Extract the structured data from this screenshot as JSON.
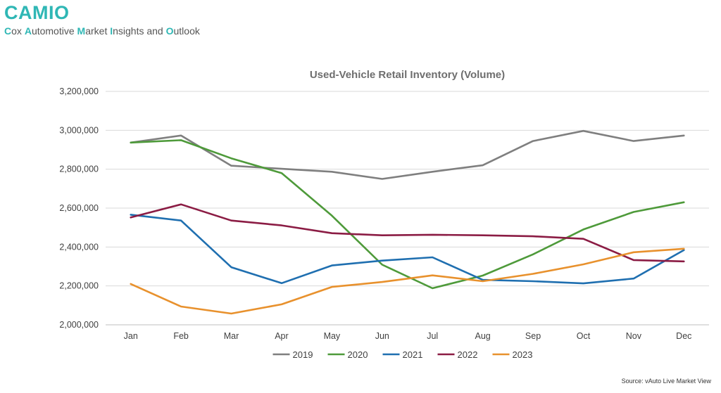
{
  "brand": {
    "title": "CAMIO",
    "subtitle_parts": [
      {
        "text": "C",
        "highlight": true
      },
      {
        "text": "ox ",
        "highlight": false
      },
      {
        "text": "A",
        "highlight": true
      },
      {
        "text": "utomotive ",
        "highlight": false
      },
      {
        "text": "M",
        "highlight": true
      },
      {
        "text": "arket ",
        "highlight": false
      },
      {
        "text": "I",
        "highlight": true
      },
      {
        "text": "nsights and ",
        "highlight": false
      },
      {
        "text": "O",
        "highlight": true
      },
      {
        "text": "utlook",
        "highlight": false
      }
    ],
    "accent_color": "#2fb7b5"
  },
  "source": "Source: vAuto Live Market View",
  "chart_data": {
    "type": "line",
    "title": "Used-Vehicle Retail Inventory (Volume)",
    "xlabel": "",
    "ylabel": "",
    "categories": [
      "Jan",
      "Feb",
      "Mar",
      "Apr",
      "May",
      "Jun",
      "Jul",
      "Aug",
      "Sep",
      "Oct",
      "Nov",
      "Dec"
    ],
    "ylim": [
      2000000,
      3200000
    ],
    "yticks": [
      2000000,
      2200000,
      2400000,
      2600000,
      2800000,
      3000000,
      3200000
    ],
    "ytick_labels": [
      "2,000,000",
      "2,200,000",
      "2,400,000",
      "2,600,000",
      "2,800,000",
      "3,000,000",
      "3,200,000"
    ],
    "grid": "horizontal",
    "legend_position": "bottom",
    "series": [
      {
        "name": "2019",
        "color": "#7f7f7f",
        "values": [
          2937000,
          2973000,
          2818000,
          2802000,
          2787000,
          2750000,
          2787000,
          2820000,
          2945000,
          2997000,
          2945000,
          2973000
        ]
      },
      {
        "name": "2020",
        "color": "#4e9a3a",
        "values": [
          2937000,
          2949000,
          2856000,
          2780000,
          2561000,
          2309000,
          2188000,
          2253000,
          2362000,
          2490000,
          2580000,
          2630000
        ]
      },
      {
        "name": "2021",
        "color": "#1f6fb0",
        "values": [
          2566000,
          2536000,
          2296000,
          2214000,
          2305000,
          2330000,
          2347000,
          2231000,
          2224000,
          2213000,
          2238000,
          2384000
        ]
      },
      {
        "name": "2022",
        "color": "#8b1c44",
        "values": [
          2552000,
          2619000,
          2536000,
          2511000,
          2471000,
          2460000,
          2463000,
          2460000,
          2455000,
          2442000,
          2333000,
          2326000
        ]
      },
      {
        "name": "2023",
        "color": "#e8912d",
        "values": [
          2210000,
          2094000,
          2058000,
          2105000,
          2195000,
          2220000,
          2254000,
          2224000,
          2262000,
          2311000,
          2373000,
          2391000
        ]
      }
    ]
  }
}
